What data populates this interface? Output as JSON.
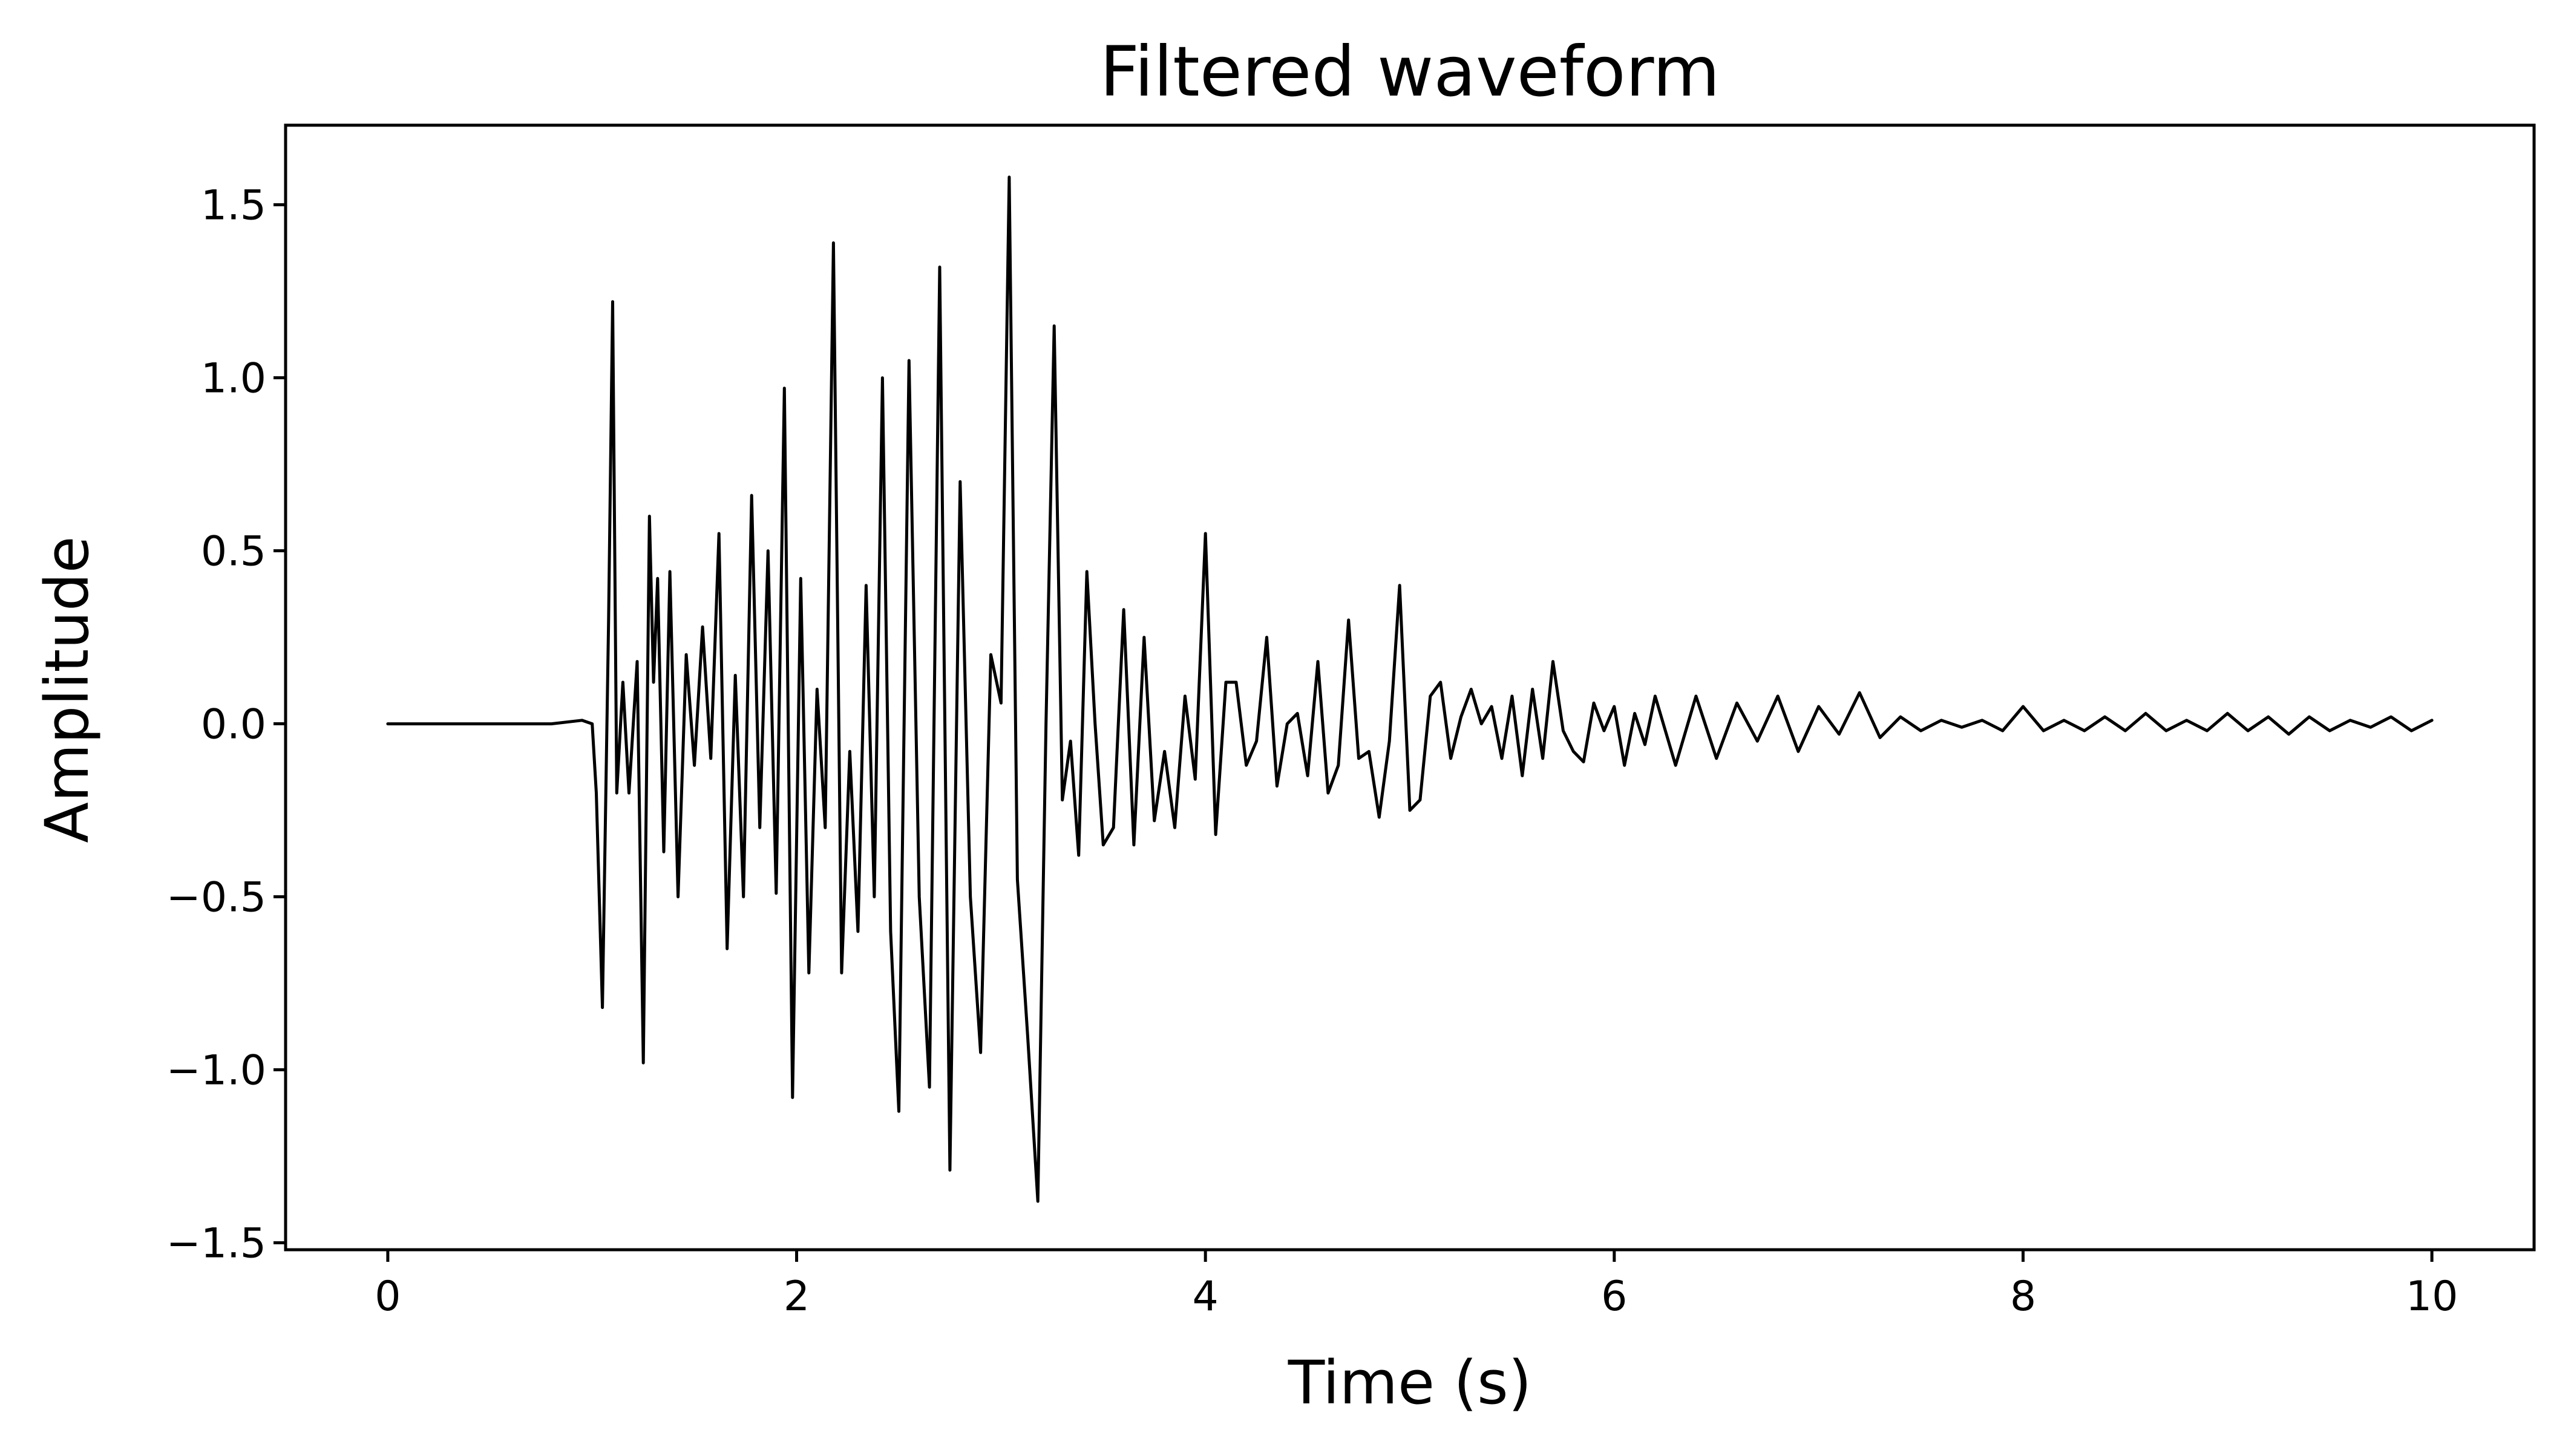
{
  "chart_data": {
    "type": "line",
    "title": "Filtered waveform",
    "xlabel": "Time (s)",
    "ylabel": "Amplitude",
    "xlim": [
      -0.5,
      10.5
    ],
    "ylim": [
      -1.52,
      1.73
    ],
    "grid": false,
    "legend": "none",
    "x_ticks": [
      0,
      2,
      4,
      6,
      8,
      10
    ],
    "x_tick_labels": [
      "0",
      "2",
      "4",
      "6",
      "8",
      "10"
    ],
    "y_ticks": [
      -1.5,
      -1.0,
      -0.5,
      0.0,
      0.5,
      1.0,
      1.5
    ],
    "y_tick_labels": [
      "−1.5",
      "−1.0",
      "−0.5",
      "0.0",
      "0.5",
      "1.0",
      "1.5"
    ],
    "series": [
      {
        "color": "#000000",
        "x": [
          0.0,
          0.2,
          0.4,
          0.6,
          0.8,
          0.95,
          1.0,
          1.02,
          1.05,
          1.08,
          1.1,
          1.12,
          1.15,
          1.18,
          1.22,
          1.25,
          1.28,
          1.3,
          1.32,
          1.35,
          1.38,
          1.42,
          1.46,
          1.5,
          1.54,
          1.58,
          1.62,
          1.66,
          1.7,
          1.74,
          1.78,
          1.82,
          1.86,
          1.9,
          1.94,
          1.98,
          2.02,
          2.06,
          2.1,
          2.14,
          2.18,
          2.22,
          2.26,
          2.3,
          2.34,
          2.38,
          2.42,
          2.46,
          2.5,
          2.55,
          2.6,
          2.65,
          2.7,
          2.75,
          2.8,
          2.85,
          2.9,
          2.95,
          3.0,
          3.04,
          3.08,
          3.13,
          3.18,
          3.22,
          3.26,
          3.3,
          3.34,
          3.38,
          3.42,
          3.46,
          3.5,
          3.55,
          3.6,
          3.65,
          3.7,
          3.75,
          3.8,
          3.85,
          3.9,
          3.95,
          4.0,
          4.05,
          4.1,
          4.15,
          4.2,
          4.25,
          4.3,
          4.35,
          4.4,
          4.45,
          4.5,
          4.55,
          4.6,
          4.65,
          4.7,
          4.75,
          4.8,
          4.85,
          4.9,
          4.95,
          5.0,
          5.05,
          5.1,
          5.15,
          5.2,
          5.25,
          5.3,
          5.35,
          5.4,
          5.45,
          5.5,
          5.55,
          5.6,
          5.65,
          5.7,
          5.75,
          5.8,
          5.85,
          5.9,
          5.95,
          6.0,
          6.05,
          6.1,
          6.15,
          6.2,
          6.3,
          6.4,
          6.5,
          6.6,
          6.7,
          6.8,
          6.9,
          7.0,
          7.1,
          7.2,
          7.3,
          7.4,
          7.5,
          7.6,
          7.7,
          7.8,
          7.9,
          8.0,
          8.1,
          8.2,
          8.3,
          8.4,
          8.5,
          8.6,
          8.7,
          8.8,
          8.9,
          9.0,
          9.1,
          9.2,
          9.3,
          9.4,
          9.5,
          9.6,
          9.7,
          9.8,
          9.9,
          10.0
        ],
        "y": [
          0.0,
          0.0,
          0.0,
          0.0,
          0.0,
          0.01,
          0.0,
          -0.2,
          -0.82,
          0.3,
          1.22,
          -0.2,
          0.12,
          -0.2,
          0.18,
          -0.98,
          0.6,
          0.12,
          0.42,
          -0.37,
          0.44,
          -0.5,
          0.2,
          -0.12,
          0.28,
          -0.1,
          0.55,
          -0.65,
          0.14,
          -0.5,
          0.66,
          -0.3,
          0.5,
          -0.49,
          0.97,
          -1.08,
          0.42,
          -0.72,
          0.1,
          -0.3,
          1.39,
          -0.72,
          -0.08,
          -0.6,
          0.4,
          -0.5,
          1.0,
          -0.6,
          -1.12,
          1.05,
          -0.5,
          -1.05,
          1.32,
          -1.29,
          0.7,
          -0.5,
          -0.95,
          0.2,
          0.06,
          1.58,
          -0.45,
          -0.9,
          -1.38,
          0.0,
          1.15,
          -0.22,
          -0.05,
          -0.38,
          0.44,
          0.0,
          -0.35,
          -0.3,
          0.33,
          -0.35,
          0.25,
          -0.28,
          -0.08,
          -0.3,
          0.08,
          -0.16,
          0.55,
          -0.32,
          0.12,
          0.12,
          -0.12,
          -0.05,
          0.25,
          -0.18,
          0.0,
          0.03,
          -0.15,
          0.18,
          -0.2,
          -0.12,
          0.3,
          -0.1,
          -0.08,
          -0.27,
          -0.05,
          0.4,
          -0.25,
          -0.22,
          0.08,
          0.12,
          -0.1,
          0.02,
          0.1,
          0.0,
          0.05,
          -0.1,
          0.08,
          -0.15,
          0.1,
          -0.1,
          0.18,
          -0.02,
          -0.08,
          -0.11,
          0.06,
          -0.02,
          0.05,
          -0.12,
          0.03,
          -0.06,
          0.08,
          -0.12,
          0.08,
          -0.1,
          0.06,
          -0.05,
          0.08,
          -0.08,
          0.05,
          -0.03,
          0.09,
          -0.04,
          0.02,
          -0.02,
          0.01,
          -0.01,
          0.01,
          -0.02,
          0.05,
          -0.02,
          0.01,
          -0.02,
          0.02,
          -0.02,
          0.03,
          -0.02,
          0.01,
          -0.02,
          0.03,
          -0.02,
          0.02,
          -0.03,
          0.02,
          -0.02,
          0.01,
          -0.01,
          0.02,
          -0.02,
          0.01
        ]
      }
    ]
  }
}
